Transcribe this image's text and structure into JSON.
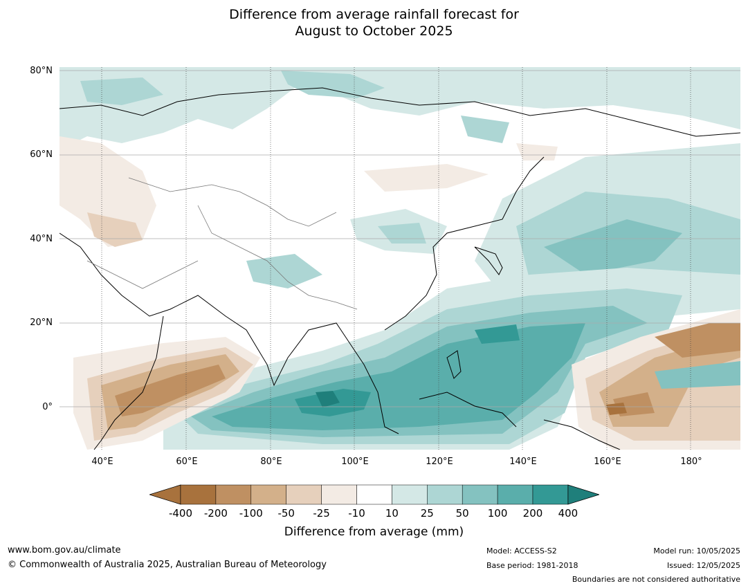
{
  "title_line1": "Difference from average rainfall forecast for",
  "title_line2": "August to October 2025",
  "map": {
    "lat_labels": [
      "80°N",
      "60°N",
      "40°N",
      "20°N",
      "0°"
    ],
    "lon_labels": [
      "40°E",
      "60°E",
      "80°E",
      "100°E",
      "120°E",
      "140°E",
      "160°E",
      "180°"
    ]
  },
  "legend": {
    "title": "Difference from average (mm)",
    "ticks": [
      "-400",
      "-200",
      "-100",
      "-50",
      "-25",
      "-10",
      "10",
      "25",
      "50",
      "100",
      "200",
      "400"
    ],
    "colors": [
      "#a8723d",
      "#bf9062",
      "#d3b08a",
      "#e6d0bc",
      "#f3ebe4",
      "#ffffff",
      "#d4e8e6",
      "#add6d4",
      "#84c2c0",
      "#5aaeab",
      "#339995",
      "#1f7f7b"
    ]
  },
  "footer": {
    "website": "www.bom.gov.au/climate",
    "copyright": "© Commonwealth of Australia 2025, Australian Bureau of Meteorology",
    "model": "Model: ACCESS-S2",
    "base_period": "Base period: 1981-2018",
    "model_run": "Model run: 10/05/2025",
    "issued": "Issued: 12/05/2025",
    "disclaimer": "Boundaries are not considered authoritative"
  }
}
